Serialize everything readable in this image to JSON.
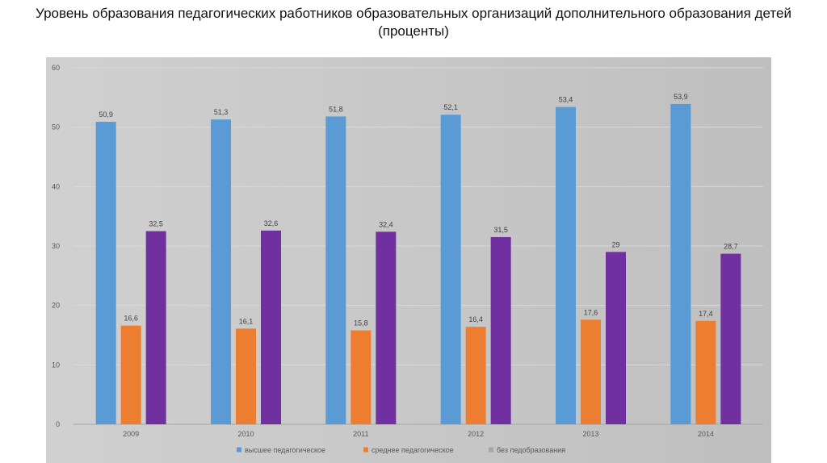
{
  "title": {
    "line1": "Уровень образования педагогических работников образовательных организаций дополнительного образования детей",
    "line2": "(проценты)"
  },
  "chart_data": {
    "type": "bar",
    "categories": [
      "2009",
      "2010",
      "2011",
      "2012",
      "2013",
      "2014"
    ],
    "series": [
      {
        "name": "высшее педагогическое",
        "color": "#5b9bd5",
        "values": [
          50.9,
          51.3,
          51.8,
          52.1,
          53.4,
          53.9
        ],
        "labels": [
          "50,9",
          "51,3",
          "51,8",
          "52,1",
          "53,4",
          "53,9"
        ]
      },
      {
        "name": "среднее педагогическое",
        "color": "#ed7d31",
        "values": [
          16.6,
          16.1,
          15.8,
          16.4,
          17.6,
          17.4
        ],
        "labels": [
          "16,6",
          "16,1",
          "15,8",
          "16,4",
          "17,6",
          "17,4"
        ]
      },
      {
        "name": "без педобразования",
        "color": "#7030a0",
        "values": [
          32.5,
          32.6,
          32.4,
          31.5,
          29,
          28.7
        ],
        "labels": [
          "32,5",
          "32,6",
          "32,4",
          "31,5",
          "29",
          "28,7"
        ]
      }
    ],
    "legend_entries": [
      {
        "name": "высшее педагогическое",
        "color": "#5b9bd5"
      },
      {
        "name": "среднее педагогическое",
        "color": "#ed7d31"
      },
      {
        "name": "без педобразования",
        "color": "#a5a5a5"
      }
    ],
    "ylim": [
      0,
      60
    ],
    "yticks": [
      "0",
      "10",
      "20",
      "30",
      "40",
      "50",
      "60"
    ],
    "grid": true,
    "legend_position": "bottom"
  }
}
